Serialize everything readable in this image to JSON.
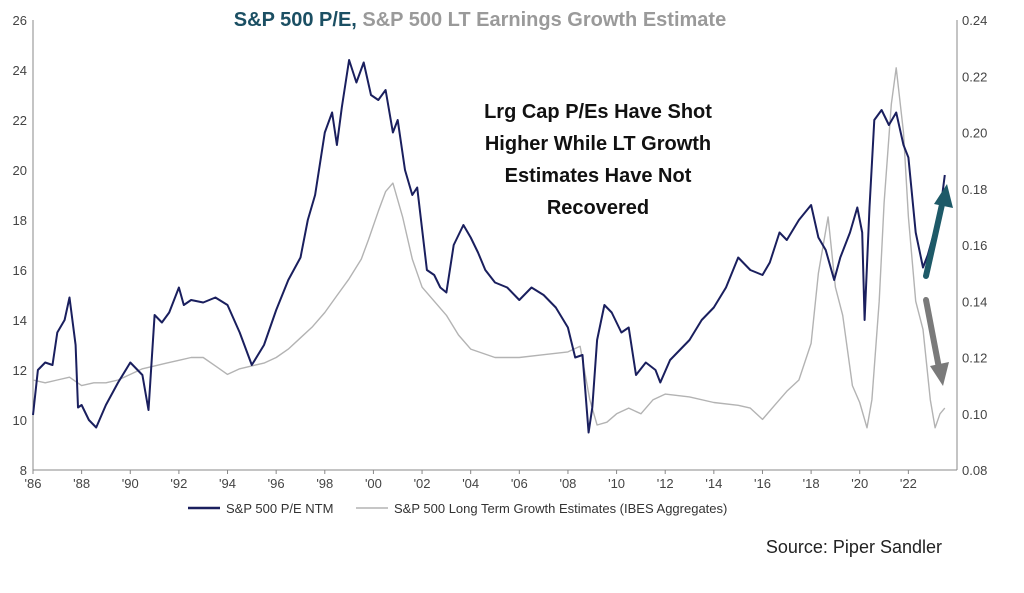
{
  "title": {
    "part1": "S&P 500 P/E,",
    "part2": " S&P 500 LT Earnings Growth Estimate",
    "part1_color": "#1b4f63",
    "part2_color": "#9a9a9a"
  },
  "annotation": {
    "lines": [
      "Lrg Cap P/Es Have Shot",
      "Higher While LT Growth",
      "Estimates Have Not",
      "Recovered"
    ]
  },
  "source": "Source: Piper Sandler",
  "colors": {
    "pe": "#1a1f5e",
    "growth": "#b3b3b3",
    "arrow_up": "#1e5a68",
    "arrow_down": "#7a7a7a",
    "axis": "#888888",
    "tick_text": "#444444"
  },
  "chart_data": {
    "type": "line",
    "x_tick_labels": [
      "'86",
      "'88",
      "'90",
      "'92",
      "'94",
      "'96",
      "'98",
      "'00",
      "'02",
      "'04",
      "'06",
      "'08",
      "'10",
      "'12",
      "'14",
      "'16",
      "'18",
      "'20",
      "'22"
    ],
    "xlim": [
      1986,
      2024
    ],
    "y_left": {
      "ylim": [
        8,
        26
      ],
      "ticks": [
        "8",
        "10",
        "12",
        "14",
        "16",
        "18",
        "20",
        "22",
        "24",
        "26"
      ]
    },
    "y_right": {
      "ylim": [
        0.08,
        0.24
      ],
      "ticks": [
        "0.08",
        "0.10",
        "0.12",
        "0.14",
        "0.16",
        "0.18",
        "0.20",
        "0.22",
        "0.24"
      ]
    },
    "legend_placement": "bottom",
    "grid": false,
    "series": [
      {
        "name": "S&P 500 P/E NTM",
        "axis": "left",
        "x": [
          1986.0,
          1986.2,
          1986.5,
          1986.8,
          1987.0,
          1987.3,
          1987.5,
          1987.75,
          1987.85,
          1988.0,
          1988.3,
          1988.6,
          1989.0,
          1989.5,
          1990.0,
          1990.5,
          1990.75,
          1991.0,
          1991.3,
          1991.6,
          1992.0,
          1992.2,
          1992.5,
          1993.0,
          1993.5,
          1994.0,
          1994.5,
          1995.0,
          1995.5,
          1996.0,
          1996.5,
          1997.0,
          1997.3,
          1997.6,
          1998.0,
          1998.3,
          1998.5,
          1998.7,
          1999.0,
          1999.3,
          1999.6,
          1999.9,
          2000.2,
          2000.5,
          2000.8,
          2001.0,
          2001.3,
          2001.6,
          2001.8,
          2002.2,
          2002.5,
          2002.75,
          2003.0,
          2003.3,
          2003.7,
          2004.0,
          2004.3,
          2004.6,
          2005.0,
          2005.5,
          2006.0,
          2006.5,
          2007.0,
          2007.5,
          2008.0,
          2008.3,
          2008.6,
          2008.85,
          2009.0,
          2009.2,
          2009.5,
          2009.8,
          2010.2,
          2010.5,
          2010.8,
          2011.2,
          2011.6,
          2011.8,
          2012.2,
          2012.6,
          2013.0,
          2013.5,
          2014.0,
          2014.5,
          2015.0,
          2015.5,
          2016.0,
          2016.3,
          2016.7,
          2017.0,
          2017.5,
          2018.0,
          2018.3,
          2018.6,
          2018.95,
          2019.2,
          2019.6,
          2019.9,
          2020.1,
          2020.2,
          2020.4,
          2020.6,
          2020.9,
          2021.2,
          2021.5,
          2021.8,
          2022.0,
          2022.3,
          2022.6,
          2022.8,
          2023.0,
          2023.3,
          2023.5
        ],
        "values": [
          10.2,
          12.0,
          12.3,
          12.2,
          13.5,
          14.0,
          14.9,
          13.0,
          10.5,
          10.6,
          10.0,
          9.7,
          10.6,
          11.5,
          12.3,
          11.8,
          10.4,
          14.2,
          13.9,
          14.3,
          15.3,
          14.6,
          14.8,
          14.7,
          14.9,
          14.6,
          13.5,
          12.2,
          13.0,
          14.4,
          15.6,
          16.5,
          18.0,
          19.0,
          21.5,
          22.3,
          21.0,
          22.5,
          24.4,
          23.5,
          24.3,
          23.0,
          22.8,
          23.2,
          21.5,
          22.0,
          20.0,
          19.0,
          19.3,
          16.0,
          15.8,
          15.3,
          15.1,
          17.0,
          17.8,
          17.3,
          16.7,
          16.0,
          15.5,
          15.3,
          14.8,
          15.3,
          15.0,
          14.5,
          13.7,
          12.5,
          12.6,
          9.5,
          10.5,
          13.2,
          14.6,
          14.3,
          13.5,
          13.7,
          11.8,
          12.3,
          12.0,
          11.5,
          12.4,
          12.8,
          13.2,
          14.0,
          14.5,
          15.3,
          16.5,
          16.0,
          15.8,
          16.3,
          17.5,
          17.2,
          18.0,
          18.6,
          17.3,
          16.8,
          15.6,
          16.5,
          17.5,
          18.5,
          17.5,
          14.0,
          18.5,
          22.0,
          22.4,
          21.8,
          22.3,
          21.0,
          20.5,
          17.5,
          16.1,
          16.6,
          17.3,
          18.3,
          19.8
        ]
      },
      {
        "name": "S&P 500 Long Term Growth Estimates (IBES Aggregates)",
        "axis": "right",
        "x": [
          1986.0,
          1986.5,
          1987.0,
          1987.5,
          1988.0,
          1988.5,
          1989.0,
          1989.5,
          1990.0,
          1990.5,
          1991.0,
          1991.5,
          1992.0,
          1992.5,
          1993.0,
          1993.5,
          1994.0,
          1994.5,
          1995.0,
          1995.5,
          1996.0,
          1996.5,
          1997.0,
          1997.5,
          1998.0,
          1998.5,
          1999.0,
          1999.5,
          1999.8,
          2000.2,
          2000.5,
          2000.8,
          2001.2,
          2001.6,
          2002.0,
          2002.5,
          2003.0,
          2003.5,
          2004.0,
          2005.0,
          2006.0,
          2007.0,
          2008.0,
          2008.5,
          2008.9,
          2009.2,
          2009.6,
          2010.0,
          2010.5,
          2011.0,
          2011.5,
          2012.0,
          2013.0,
          2014.0,
          2015.0,
          2015.5,
          2016.0,
          2016.5,
          2017.0,
          2017.5,
          2018.0,
          2018.3,
          2018.7,
          2019.0,
          2019.3,
          2019.7,
          2020.0,
          2020.3,
          2020.5,
          2020.8,
          2021.0,
          2021.3,
          2021.5,
          2021.8,
          2022.0,
          2022.3,
          2022.6,
          2022.9,
          2023.1,
          2023.3,
          2023.5
        ],
        "values": [
          0.112,
          0.111,
          0.112,
          0.113,
          0.11,
          0.111,
          0.111,
          0.112,
          0.114,
          0.116,
          0.117,
          0.118,
          0.119,
          0.12,
          0.12,
          0.117,
          0.114,
          0.116,
          0.117,
          0.118,
          0.12,
          0.123,
          0.127,
          0.131,
          0.136,
          0.142,
          0.148,
          0.155,
          0.162,
          0.172,
          0.179,
          0.182,
          0.17,
          0.155,
          0.145,
          0.14,
          0.135,
          0.128,
          0.123,
          0.12,
          0.12,
          0.121,
          0.122,
          0.124,
          0.105,
          0.096,
          0.097,
          0.1,
          0.102,
          0.1,
          0.105,
          0.107,
          0.106,
          0.104,
          0.103,
          0.102,
          0.098,
          0.103,
          0.108,
          0.112,
          0.125,
          0.15,
          0.17,
          0.145,
          0.135,
          0.11,
          0.104,
          0.095,
          0.105,
          0.14,
          0.175,
          0.21,
          0.223,
          0.2,
          0.17,
          0.14,
          0.13,
          0.105,
          0.095,
          0.1,
          0.102
        ]
      }
    ]
  }
}
